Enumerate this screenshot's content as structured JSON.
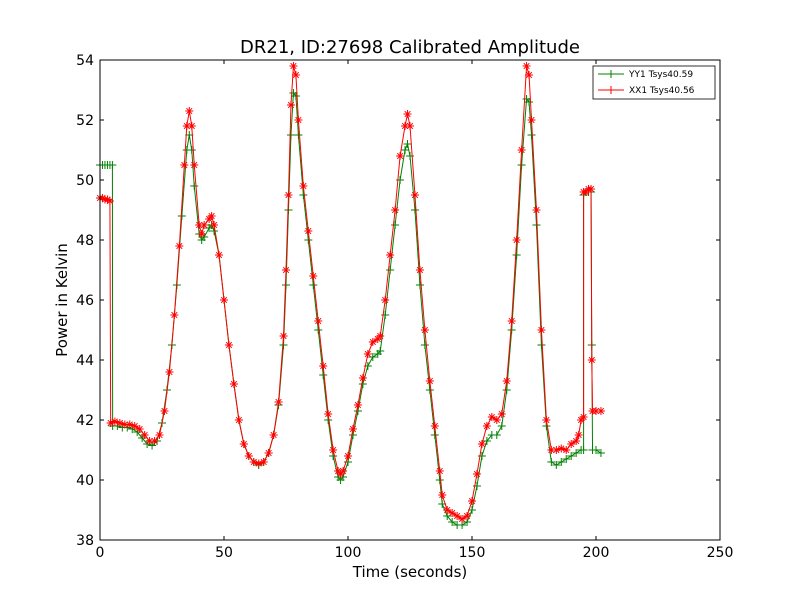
{
  "chart_data": {
    "type": "line",
    "title": "DR21, ID:27698 Calibrated Amplitude",
    "xlabel": "Time (seconds)",
    "ylabel": "Power in Kelvin",
    "xlim": [
      0,
      250
    ],
    "ylim": [
      38,
      54
    ],
    "xticks": [
      0,
      50,
      100,
      150,
      200,
      250
    ],
    "yticks": [
      38,
      40,
      42,
      44,
      46,
      48,
      50,
      52,
      54
    ],
    "grid": false,
    "legend_position": "top-right",
    "series": [
      {
        "name": "YY1 Tsys40.59",
        "color": "#008000",
        "marker": "+",
        "points": [
          [
            0,
            50.5
          ],
          [
            1,
            50.5
          ],
          [
            2,
            50.5
          ],
          [
            3,
            50.5
          ],
          [
            4,
            50.5
          ],
          [
            5,
            50.5
          ],
          [
            5.1,
            41.8
          ],
          [
            7,
            41.8
          ],
          [
            9,
            41.75
          ],
          [
            11,
            41.75
          ],
          [
            13,
            41.7
          ],
          [
            15,
            41.6
          ],
          [
            17,
            41.4
          ],
          [
            19,
            41.2
          ],
          [
            21,
            41.15
          ],
          [
            23,
            41.3
          ],
          [
            25,
            41.9
          ],
          [
            27,
            43.0
          ],
          [
            29,
            44.5
          ],
          [
            31,
            46.5
          ],
          [
            33,
            48.8
          ],
          [
            35,
            51.0
          ],
          [
            36,
            51.5
          ],
          [
            37,
            51.0
          ],
          [
            38,
            49.8
          ],
          [
            40,
            48.2
          ],
          [
            41,
            48.0
          ],
          [
            42,
            48.1
          ],
          [
            44,
            48.4
          ],
          [
            45,
            48.5
          ],
          [
            46,
            48.3
          ],
          [
            48,
            47.5
          ],
          [
            50,
            46.0
          ],
          [
            52,
            44.5
          ],
          [
            54,
            43.2
          ],
          [
            56,
            42.0
          ],
          [
            58,
            41.2
          ],
          [
            60,
            40.8
          ],
          [
            62,
            40.6
          ],
          [
            64,
            40.5
          ],
          [
            66,
            40.6
          ],
          [
            68,
            40.9
          ],
          [
            70,
            41.5
          ],
          [
            72,
            42.5
          ],
          [
            74,
            44.5
          ],
          [
            75,
            46.5
          ],
          [
            76,
            49.0
          ],
          [
            77,
            51.5
          ],
          [
            78,
            52.9
          ],
          [
            79,
            52.8
          ],
          [
            80,
            51.5
          ],
          [
            82,
            49.5
          ],
          [
            84,
            48.0
          ],
          [
            86,
            46.5
          ],
          [
            88,
            45.0
          ],
          [
            90,
            43.5
          ],
          [
            92,
            42.0
          ],
          [
            94,
            40.8
          ],
          [
            96,
            40.1
          ],
          [
            97,
            40.0
          ],
          [
            98,
            40.1
          ],
          [
            100,
            40.6
          ],
          [
            102,
            41.5
          ],
          [
            104,
            42.3
          ],
          [
            106,
            43.2
          ],
          [
            108,
            43.8
          ],
          [
            110,
            44.1
          ],
          [
            112,
            44.2
          ],
          [
            113,
            44.3
          ],
          [
            115,
            45.5
          ],
          [
            117,
            47.0
          ],
          [
            119,
            48.5
          ],
          [
            121,
            50.0
          ],
          [
            123,
            51.0
          ],
          [
            124,
            51.2
          ],
          [
            125,
            50.8
          ],
          [
            127,
            49.0
          ],
          [
            129,
            46.5
          ],
          [
            131,
            44.5
          ],
          [
            133,
            43.0
          ],
          [
            135,
            41.5
          ],
          [
            137,
            40.0
          ],
          [
            138,
            39.2
          ],
          [
            140,
            38.8
          ],
          [
            142,
            38.6
          ],
          [
            144,
            38.5
          ],
          [
            146,
            38.5
          ],
          [
            148,
            38.6
          ],
          [
            150,
            39.0
          ],
          [
            152,
            39.8
          ],
          [
            154,
            40.8
          ],
          [
            156,
            41.3
          ],
          [
            158,
            41.5
          ],
          [
            160,
            41.5
          ],
          [
            162,
            41.8
          ],
          [
            164,
            43.0
          ],
          [
            166,
            45.0
          ],
          [
            168,
            47.5
          ],
          [
            170,
            50.5
          ],
          [
            172,
            52.7
          ],
          [
            173,
            52.6
          ],
          [
            174,
            51.5
          ],
          [
            176,
            48.5
          ],
          [
            178,
            44.5
          ],
          [
            180,
            41.8
          ],
          [
            182,
            40.6
          ],
          [
            184,
            40.5
          ],
          [
            186,
            40.6
          ],
          [
            188,
            40.7
          ],
          [
            190,
            40.8
          ],
          [
            192,
            40.9
          ],
          [
            194,
            41.0
          ],
          [
            195,
            41.0
          ],
          [
            195,
            49.5
          ],
          [
            196,
            49.6
          ],
          [
            197,
            49.6
          ],
          [
            198,
            49.6
          ],
          [
            198.3,
            44.5
          ],
          [
            198.6,
            41.0
          ],
          [
            200,
            41.0
          ],
          [
            202,
            40.9
          ]
        ]
      },
      {
        "name": "XX1 Tsys40.56",
        "color": "#ff0000",
        "marker": "*",
        "points": [
          [
            0,
            49.4
          ],
          [
            1,
            49.4
          ],
          [
            2,
            49.35
          ],
          [
            3,
            49.35
          ],
          [
            4,
            49.3
          ],
          [
            4.3,
            41.9
          ],
          [
            6,
            41.95
          ],
          [
            8,
            41.9
          ],
          [
            10,
            41.85
          ],
          [
            12,
            41.85
          ],
          [
            14,
            41.8
          ],
          [
            16,
            41.7
          ],
          [
            18,
            41.5
          ],
          [
            20,
            41.3
          ],
          [
            22,
            41.3
          ],
          [
            24,
            41.5
          ],
          [
            26,
            42.3
          ],
          [
            28,
            43.6
          ],
          [
            30,
            45.5
          ],
          [
            32,
            47.8
          ],
          [
            34,
            50.5
          ],
          [
            35,
            51.8
          ],
          [
            36,
            52.3
          ],
          [
            37,
            51.8
          ],
          [
            38,
            50.5
          ],
          [
            40,
            48.5
          ],
          [
            41,
            48.2
          ],
          [
            42,
            48.5
          ],
          [
            44,
            48.7
          ],
          [
            45,
            48.8
          ],
          [
            46,
            48.5
          ],
          [
            48,
            47.5
          ],
          [
            50,
            46.0
          ],
          [
            52,
            44.5
          ],
          [
            54,
            43.2
          ],
          [
            56,
            42.0
          ],
          [
            58,
            41.2
          ],
          [
            60,
            40.8
          ],
          [
            62,
            40.6
          ],
          [
            64,
            40.55
          ],
          [
            66,
            40.6
          ],
          [
            68,
            40.9
          ],
          [
            70,
            41.5
          ],
          [
            72,
            42.6
          ],
          [
            74,
            44.8
          ],
          [
            75,
            47.0
          ],
          [
            76,
            49.5
          ],
          [
            77,
            52.5
          ],
          [
            78,
            53.8
          ],
          [
            79,
            53.5
          ],
          [
            80,
            52.0
          ],
          [
            82,
            49.8
          ],
          [
            84,
            48.3
          ],
          [
            86,
            46.8
          ],
          [
            88,
            45.3
          ],
          [
            90,
            43.8
          ],
          [
            92,
            42.2
          ],
          [
            94,
            41.0
          ],
          [
            96,
            40.3
          ],
          [
            97,
            40.2
          ],
          [
            98,
            40.3
          ],
          [
            100,
            40.8
          ],
          [
            102,
            41.7
          ],
          [
            104,
            42.5
          ],
          [
            106,
            43.4
          ],
          [
            108,
            44.2
          ],
          [
            110,
            44.6
          ],
          [
            112,
            44.7
          ],
          [
            113,
            44.8
          ],
          [
            115,
            46.0
          ],
          [
            117,
            47.5
          ],
          [
            119,
            49.0
          ],
          [
            121,
            50.8
          ],
          [
            123,
            51.8
          ],
          [
            124,
            52.2
          ],
          [
            125,
            51.8
          ],
          [
            127,
            49.5
          ],
          [
            129,
            47.0
          ],
          [
            131,
            45.0
          ],
          [
            133,
            43.3
          ],
          [
            135,
            41.8
          ],
          [
            137,
            40.3
          ],
          [
            138,
            39.5
          ],
          [
            140,
            39.0
          ],
          [
            142,
            38.9
          ],
          [
            144,
            38.8
          ],
          [
            146,
            38.7
          ],
          [
            148,
            38.8
          ],
          [
            150,
            39.3
          ],
          [
            152,
            40.2
          ],
          [
            154,
            41.2
          ],
          [
            156,
            41.8
          ],
          [
            158,
            42.1
          ],
          [
            160,
            42.0
          ],
          [
            162,
            42.2
          ],
          [
            164,
            43.3
          ],
          [
            166,
            45.3
          ],
          [
            168,
            48.0
          ],
          [
            170,
            51.0
          ],
          [
            172,
            53.8
          ],
          [
            173,
            53.5
          ],
          [
            174,
            52.0
          ],
          [
            176,
            49.0
          ],
          [
            178,
            45.0
          ],
          [
            180,
            42.0
          ],
          [
            182,
            41.0
          ],
          [
            184,
            41.0
          ],
          [
            186,
            41.05
          ],
          [
            188,
            41.0
          ],
          [
            190,
            41.2
          ],
          [
            192,
            41.3
          ],
          [
            193,
            41.5
          ],
          [
            194,
            42.0
          ],
          [
            195,
            42.1
          ],
          [
            195,
            49.6
          ],
          [
            196,
            49.6
          ],
          [
            197,
            49.7
          ],
          [
            198,
            49.7
          ],
          [
            198.3,
            44.0
          ],
          [
            198.6,
            42.3
          ],
          [
            200,
            42.3
          ],
          [
            202,
            42.3
          ]
        ]
      }
    ]
  }
}
